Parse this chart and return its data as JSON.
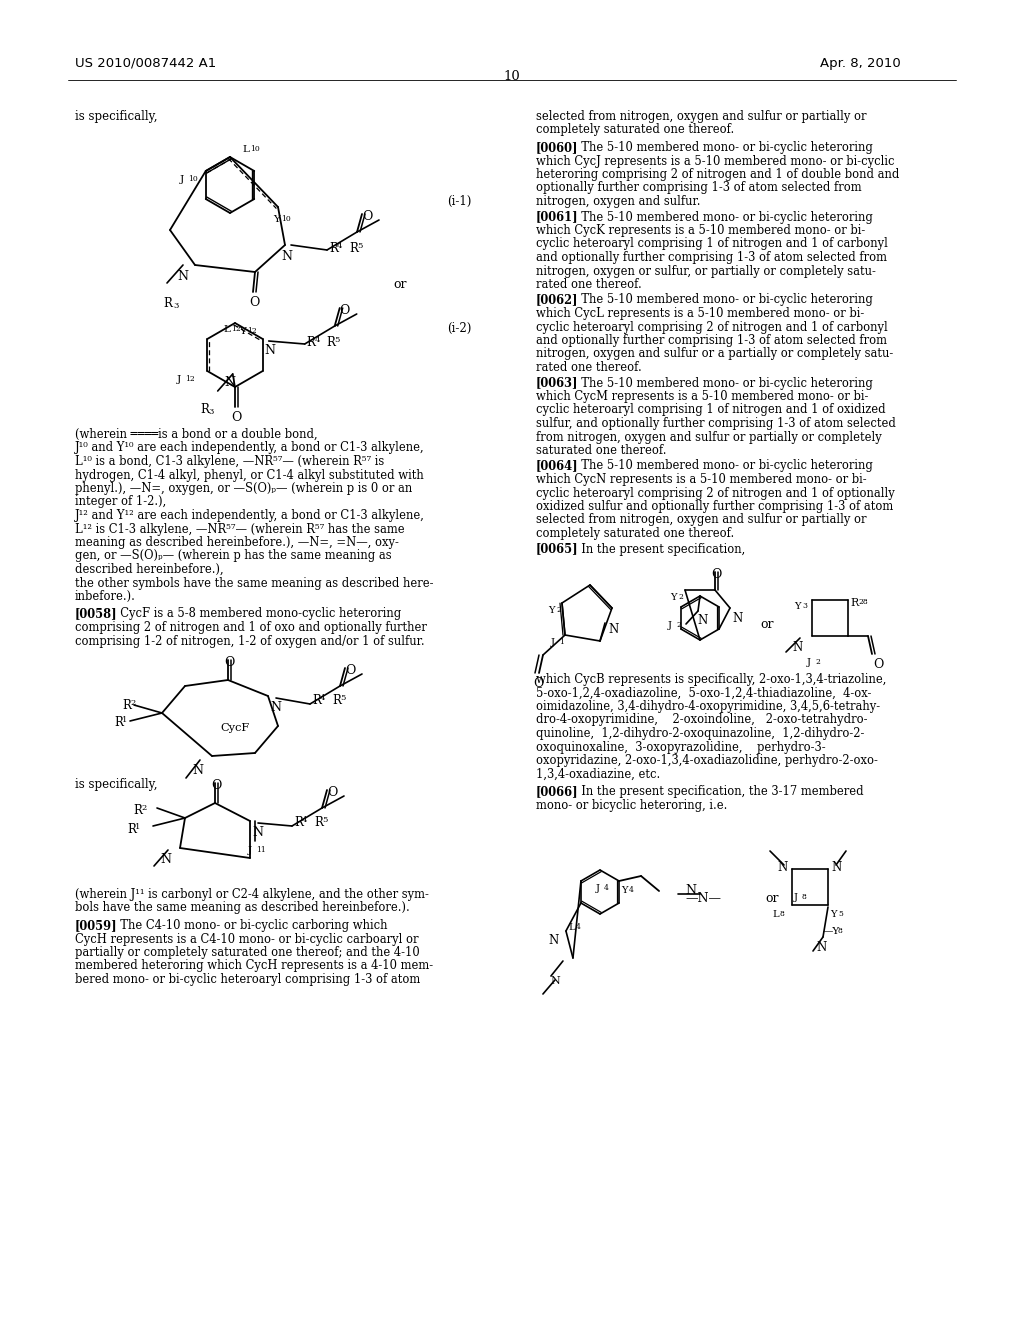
{
  "bg": "#ffffff",
  "patent_left": "US 2010/0087442 A1",
  "patent_right": "Apr. 8, 2010",
  "page_num": "10",
  "figw": 10.24,
  "figh": 13.2,
  "dpi": 100
}
